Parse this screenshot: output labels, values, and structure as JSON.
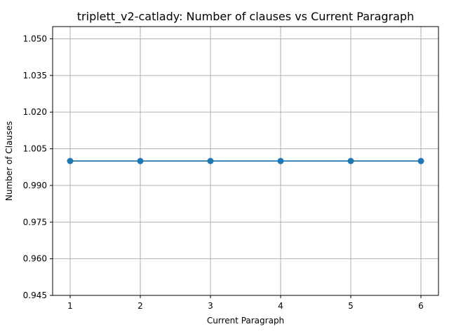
{
  "chart_data": {
    "type": "line",
    "title": "triplett_v2-catlady: Number of clauses vs Current Paragraph",
    "xlabel": "Current Paragraph",
    "ylabel": "Number of Clauses",
    "x": [
      1,
      2,
      3,
      4,
      5,
      6
    ],
    "series": [
      {
        "values": [
          1,
          1,
          1,
          1,
          1,
          1
        ],
        "color": "#1f77b4"
      }
    ],
    "xlim": [
      0.75,
      6.25
    ],
    "ylim": [
      0.945,
      1.055
    ],
    "xticks": [
      "1",
      "2",
      "3",
      "4",
      "5",
      "6"
    ],
    "yticks": [
      "0.945",
      "0.960",
      "0.975",
      "0.990",
      "1.005",
      "1.020",
      "1.035",
      "1.050"
    ],
    "grid": true,
    "legend": "none"
  }
}
